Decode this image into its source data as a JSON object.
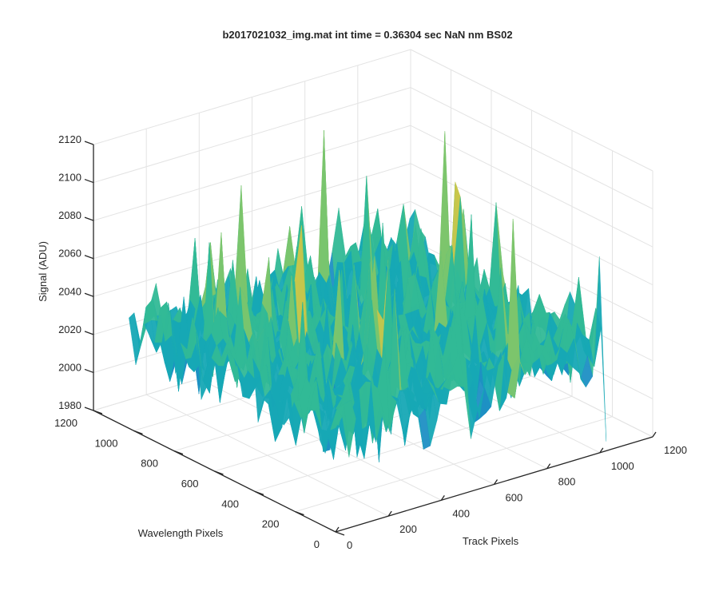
{
  "chart_data": {
    "type": "surface",
    "title": "b2017021032_img.mat int time = 0.36304 sec  NaN nm BS02",
    "xlabel": "Track Pixels",
    "ylabel": "Wavelength Pixels",
    "zlabel": "Signal (ADU)",
    "xlim": [
      0,
      1200
    ],
    "ylim": [
      0,
      1200
    ],
    "zlim": [
      1980,
      2120
    ],
    "xticks": [
      "0",
      "200",
      "400",
      "600",
      "800",
      "1000",
      "1200"
    ],
    "yticks": [
      "0",
      "200",
      "400",
      "600",
      "800",
      "1000",
      "1200"
    ],
    "zticks": [
      "1980",
      "2000",
      "2020",
      "2040",
      "2060",
      "2080",
      "2100",
      "2120"
    ],
    "grid": true,
    "colormap": [
      "#0072bd",
      "#1d8fc4",
      "#16a8b5",
      "#31b996",
      "#7cc56c",
      "#c8c64a",
      "#e6c23a"
    ],
    "data_extent": {
      "x_max": 1024,
      "y_max": 1024
    },
    "signal": {
      "baseline": 2033,
      "noise_sd": 11,
      "min": 1985,
      "max": 2117,
      "anomaly_min_near": {
        "x": 1024,
        "y": 0,
        "value": 1985
      }
    }
  }
}
